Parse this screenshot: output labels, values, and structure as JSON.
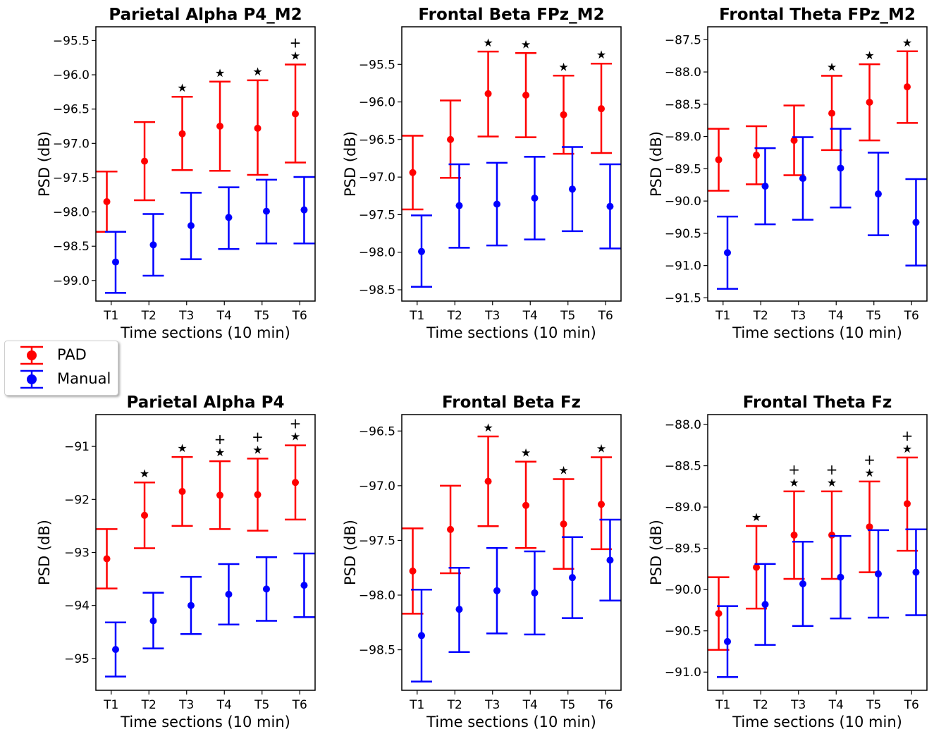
{
  "legend": {
    "entries": [
      {
        "label": "PAD",
        "color": "#ff0000"
      },
      {
        "label": "Manual",
        "color": "#0000ff"
      }
    ]
  },
  "markers": {
    "star": "★",
    "plus": "+"
  },
  "chart_data": [
    {
      "type": "errorbar",
      "title": "Parietal Alpha P4_M2",
      "xlabel": "Time sections (10 min)",
      "ylabel": "PSD (dB)",
      "categories": [
        "T1",
        "T2",
        "T3",
        "T4",
        "T5",
        "T6"
      ],
      "ylim": [
        -99.3,
        -95.3
      ],
      "yticks": [
        -95.5,
        -96.0,
        -96.5,
        -97.0,
        -97.5,
        -98.0,
        -98.5,
        -99.0
      ],
      "ytick_labels": [
        "−95.5",
        "−96.0",
        "−96.5",
        "−97.0",
        "−97.5",
        "−98.0",
        "−98.5",
        "−99.0"
      ],
      "series": [
        {
          "name": "PAD",
          "color": "#ff0000",
          "mean": [
            -97.85,
            -97.26,
            -96.86,
            -96.75,
            -96.78,
            -96.57
          ],
          "low": [
            -98.29,
            -97.83,
            -97.39,
            -97.4,
            -97.46,
            -97.28
          ],
          "high": [
            -97.41,
            -96.69,
            -96.32,
            -96.1,
            -96.08,
            -95.85
          ]
        },
        {
          "name": "Manual",
          "color": "#0000ff",
          "mean": [
            -98.73,
            -98.48,
            -98.2,
            -98.08,
            -97.99,
            -97.97
          ],
          "low": [
            -99.18,
            -98.93,
            -98.69,
            -98.54,
            -98.46,
            -98.46
          ],
          "high": [
            -98.29,
            -98.03,
            -97.72,
            -97.64,
            -97.53,
            -97.49
          ]
        }
      ],
      "annotations": {
        "star": [
          false,
          false,
          true,
          true,
          true,
          true
        ],
        "plus": [
          false,
          false,
          false,
          false,
          false,
          true
        ]
      }
    },
    {
      "type": "errorbar",
      "title": "Frontal Beta FPz_M2",
      "xlabel": "Time sections (10 min)",
      "ylabel": "PSD (dB)",
      "categories": [
        "T1",
        "T2",
        "T3",
        "T4",
        "T5",
        "T6"
      ],
      "ylim": [
        -98.65,
        -95.0
      ],
      "yticks": [
        -95.5,
        -96.0,
        -96.5,
        -97.0,
        -97.5,
        -98.0,
        -98.5
      ],
      "ytick_labels": [
        "−95.5",
        "−96.0",
        "−96.5",
        "−97.0",
        "−97.5",
        "−98.0",
        "−98.5"
      ],
      "series": [
        {
          "name": "PAD",
          "color": "#ff0000",
          "mean": [
            -96.94,
            -96.5,
            -95.89,
            -95.91,
            -96.17,
            -96.09
          ],
          "low": [
            -97.43,
            -97.01,
            -96.46,
            -96.47,
            -96.69,
            -96.68
          ],
          "high": [
            -96.45,
            -95.98,
            -95.33,
            -95.35,
            -95.65,
            -95.49
          ]
        },
        {
          "name": "Manual",
          "color": "#0000ff",
          "mean": [
            -97.99,
            -97.38,
            -97.36,
            -97.28,
            -97.16,
            -97.39
          ],
          "low": [
            -98.46,
            -97.94,
            -97.91,
            -97.83,
            -97.72,
            -97.95
          ],
          "high": [
            -97.51,
            -96.83,
            -96.81,
            -96.73,
            -96.6,
            -96.83
          ]
        }
      ],
      "annotations": {
        "star": [
          false,
          false,
          true,
          true,
          true,
          true
        ],
        "plus": [
          false,
          false,
          false,
          false,
          false,
          false
        ]
      }
    },
    {
      "type": "errorbar",
      "title": "Frontal Theta FPz_M2",
      "xlabel": "Time sections (10 min)",
      "ylabel": "PSD (dB)",
      "categories": [
        "T1",
        "T2",
        "T3",
        "T4",
        "T5",
        "T6"
      ],
      "ylim": [
        -91.55,
        -87.3
      ],
      "yticks": [
        -87.5,
        -88.0,
        -88.5,
        -89.0,
        -89.5,
        -90.0,
        -90.5,
        -91.0,
        -91.5
      ],
      "ytick_labels": [
        "−87.5",
        "−88.0",
        "−88.5",
        "−89.0",
        "−89.5",
        "−90.0",
        "−90.5",
        "−91.0",
        "−91.5"
      ],
      "series": [
        {
          "name": "PAD",
          "color": "#ff0000",
          "mean": [
            -89.36,
            -89.29,
            -89.06,
            -88.64,
            -88.47,
            -88.23
          ],
          "low": [
            -89.84,
            -89.74,
            -89.6,
            -89.21,
            -89.06,
            -88.79
          ],
          "high": [
            -88.88,
            -88.84,
            -88.52,
            -88.06,
            -87.88,
            -87.68
          ]
        },
        {
          "name": "Manual",
          "color": "#0000ff",
          "mean": [
            -90.8,
            -89.77,
            -89.65,
            -89.49,
            -89.89,
            -90.33
          ],
          "low": [
            -91.36,
            -90.36,
            -90.29,
            -90.1,
            -90.53,
            -91.0
          ],
          "high": [
            -90.24,
            -89.18,
            -89.01,
            -88.88,
            -89.25,
            -89.66
          ]
        }
      ],
      "annotations": {
        "star": [
          false,
          false,
          false,
          true,
          true,
          true
        ],
        "plus": [
          false,
          false,
          false,
          false,
          false,
          false
        ]
      }
    },
    {
      "type": "errorbar",
      "title": "Parietal Alpha P4",
      "xlabel": "Time sections (10 min)",
      "ylabel": "PSD (dB)",
      "categories": [
        "T1",
        "T2",
        "T3",
        "T4",
        "T5",
        "T6"
      ],
      "ylim": [
        -95.6,
        -90.4
      ],
      "yticks": [
        -91,
        -92,
        -93,
        -94,
        -95
      ],
      "ytick_labels": [
        "−91",
        "−92",
        "−93",
        "−94",
        "−95"
      ],
      "series": [
        {
          "name": "PAD",
          "color": "#ff0000",
          "mean": [
            -93.12,
            -92.3,
            -91.85,
            -91.92,
            -91.91,
            -91.68
          ],
          "low": [
            -93.68,
            -92.92,
            -92.5,
            -92.56,
            -92.59,
            -92.38
          ],
          "high": [
            -92.56,
            -91.68,
            -91.2,
            -91.28,
            -91.23,
            -90.98
          ]
        },
        {
          "name": "Manual",
          "color": "#0000ff",
          "mean": [
            -94.83,
            -94.29,
            -94.0,
            -93.79,
            -93.69,
            -93.62
          ],
          "low": [
            -95.34,
            -94.81,
            -94.54,
            -94.36,
            -94.29,
            -94.22
          ],
          "high": [
            -94.32,
            -93.76,
            -93.46,
            -93.22,
            -93.09,
            -93.02
          ]
        }
      ],
      "annotations": {
        "star": [
          false,
          true,
          true,
          true,
          true,
          true
        ],
        "plus": [
          false,
          false,
          false,
          true,
          true,
          true
        ]
      }
    },
    {
      "type": "errorbar",
      "title": "Frontal Beta Fz",
      "xlabel": "Time sections (10 min)",
      "ylabel": "PSD (dB)",
      "categories": [
        "T1",
        "T2",
        "T3",
        "T4",
        "T5",
        "T6"
      ],
      "ylim": [
        -98.87,
        -96.35
      ],
      "yticks": [
        -96.5,
        -97.0,
        -97.5,
        -98.0,
        -98.5
      ],
      "ytick_labels": [
        "−96.5",
        "−97.0",
        "−97.5",
        "−98.0",
        "−98.5"
      ],
      "series": [
        {
          "name": "PAD",
          "color": "#ff0000",
          "mean": [
            -97.78,
            -97.4,
            -96.96,
            -97.18,
            -97.35,
            -97.17
          ],
          "low": [
            -98.17,
            -97.8,
            -97.37,
            -97.57,
            -97.76,
            -97.58
          ],
          "high": [
            -97.39,
            -97.0,
            -96.55,
            -96.78,
            -96.94,
            -96.74
          ]
        },
        {
          "name": "Manual",
          "color": "#0000ff",
          "mean": [
            -98.37,
            -98.13,
            -97.96,
            -97.98,
            -97.84,
            -97.68
          ],
          "low": [
            -98.79,
            -98.52,
            -98.35,
            -98.36,
            -98.21,
            -98.05
          ],
          "high": [
            -97.95,
            -97.75,
            -97.57,
            -97.6,
            -97.47,
            -97.31
          ]
        }
      ],
      "annotations": {
        "star": [
          false,
          false,
          true,
          true,
          true,
          true
        ],
        "plus": [
          false,
          false,
          false,
          false,
          false,
          false
        ]
      }
    },
    {
      "type": "errorbar",
      "title": "Frontal Theta Fz",
      "xlabel": "Time sections (10 min)",
      "ylabel": "PSD (dB)",
      "categories": [
        "T1",
        "T2",
        "T3",
        "T4",
        "T5",
        "T6"
      ],
      "ylim": [
        -91.22,
        -87.88
      ],
      "yticks": [
        -88.0,
        -88.5,
        -89.0,
        -89.5,
        -90.0,
        -90.5,
        -91.0
      ],
      "ytick_labels": [
        "−88.0",
        "−88.5",
        "−89.0",
        "−89.5",
        "−90.0",
        "−90.5",
        "−91.0"
      ],
      "series": [
        {
          "name": "PAD",
          "color": "#ff0000",
          "mean": [
            -90.29,
            -89.73,
            -89.34,
            -89.34,
            -89.24,
            -88.96
          ],
          "low": [
            -90.73,
            -90.23,
            -89.87,
            -89.87,
            -89.79,
            -89.53
          ],
          "high": [
            -89.85,
            -89.23,
            -88.81,
            -88.81,
            -88.69,
            -88.4
          ]
        },
        {
          "name": "Manual",
          "color": "#0000ff",
          "mean": [
            -90.63,
            -90.18,
            -89.93,
            -89.85,
            -89.81,
            -89.79
          ],
          "low": [
            -91.06,
            -90.67,
            -90.44,
            -90.35,
            -90.34,
            -90.31
          ],
          "high": [
            -90.2,
            -89.69,
            -89.42,
            -89.35,
            -89.28,
            -89.27
          ]
        }
      ],
      "annotations": {
        "star": [
          false,
          true,
          true,
          true,
          true,
          true
        ],
        "plus": [
          false,
          false,
          true,
          true,
          true,
          true
        ]
      }
    }
  ]
}
